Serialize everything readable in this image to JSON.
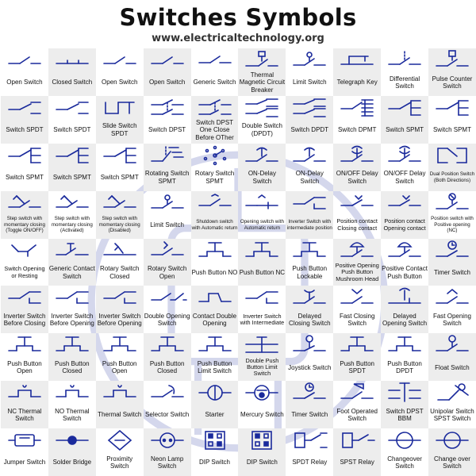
{
  "header": {
    "title": "Switches Symbols",
    "subtitle": "www.electricaltechnology.org"
  },
  "colors": {
    "symbol": "#1a2a9c",
    "alt_cell": "#ededed",
    "text": "#111111"
  },
  "grid": {
    "rows": 9,
    "cols": 10,
    "cells": [
      {
        "label": "Open Switch",
        "icon": "open-switch"
      },
      {
        "label": "Closed Switch",
        "icon": "closed-switch"
      },
      {
        "label": "Open Switch",
        "icon": "open-switch"
      },
      {
        "label": "Open Switch",
        "icon": "open-switch"
      },
      {
        "label": "Generic Switch",
        "icon": "generic-switch"
      },
      {
        "label": "Thermal Magnetic Circuit Breaker",
        "icon": "thermal-magnetic-breaker"
      },
      {
        "label": "Limit Switch",
        "icon": "limit-switch"
      },
      {
        "label": "Telegraph Key",
        "icon": "telegraph-key"
      },
      {
        "label": "Differential Switch",
        "icon": "differential-switch"
      },
      {
        "label": "Pulse Counter Switch",
        "icon": "pulse-counter-switch"
      },
      {
        "label": "Switch SPDT",
        "icon": "spdt"
      },
      {
        "label": "Switch SPDT",
        "icon": "spdt"
      },
      {
        "label": "Slide Switch SPDT",
        "icon": "slide-spdt"
      },
      {
        "label": "Switch DPST",
        "icon": "dpst"
      },
      {
        "label": "Switch DPST One Close Before OTher",
        "icon": "dpst-one-close"
      },
      {
        "label": "Double Switch (DPDT)",
        "icon": "dpdt"
      },
      {
        "label": "Switch DPDT",
        "icon": "dpdt"
      },
      {
        "label": "Switch DPMT",
        "icon": "dpmt"
      },
      {
        "label": "Switch SPMT",
        "icon": "spmt"
      },
      {
        "label": "Switch SPMT",
        "icon": "spmt"
      },
      {
        "label": "Switch SPMT",
        "icon": "spmt"
      },
      {
        "label": "Switch SPMT",
        "icon": "spmt"
      },
      {
        "label": "Switch SPMT",
        "icon": "spmt"
      },
      {
        "label": "Rotating Switch SPMT",
        "icon": "rotating-switch"
      },
      {
        "label": "Rotary Switch SPMT",
        "icon": "rotary-switch"
      },
      {
        "label": "ON-Delay Switch",
        "icon": "on-delay"
      },
      {
        "label": "ON-Delay Switch",
        "icon": "on-delay"
      },
      {
        "label": "ON/OFF Delay Switch",
        "icon": "on-off-delay"
      },
      {
        "label": "ON/OFF Delay Switch",
        "icon": "on-off-delay"
      },
      {
        "label": "Dual Position Switch (Both Directions)",
        "icon": "dual-position",
        "size": "tiny"
      },
      {
        "label": "Step switch with momentary closing (Toggle ON/OFF)",
        "icon": "step-switch",
        "size": "tiny"
      },
      {
        "label": "Step switch with momentary closing (Activated)",
        "icon": "step-switch",
        "size": "tiny"
      },
      {
        "label": "Step switch with momentary closing (Disabled)",
        "icon": "step-switch",
        "size": "tiny"
      },
      {
        "label": "Limit Switch",
        "icon": "limit-switch"
      },
      {
        "label": "Shutdown switch with Automatic return",
        "icon": "shutdown-switch",
        "size": "tiny"
      },
      {
        "label": "Opening switch with Automatic return",
        "icon": "opening-switch",
        "size": "tiny"
      },
      {
        "label": "Inverter Switch with intermediate position",
        "icon": "inverter-switch",
        "size": "tiny"
      },
      {
        "label": "Position contact Closing contact",
        "icon": "position-contact",
        "size": "small"
      },
      {
        "label": "Position contact Opening contact",
        "icon": "position-contact",
        "size": "small"
      },
      {
        "label": "Position switch with Positive opening (NC)",
        "icon": "position-switch",
        "size": "tiny"
      },
      {
        "label": "Switch Opening or Resting",
        "icon": "switch-opening",
        "size": "small"
      },
      {
        "label": "Generic Contact Switch",
        "icon": "generic-contact"
      },
      {
        "label": "Rotary Switch Closed",
        "icon": "rotary-closed"
      },
      {
        "label": "Rotary Switch Open",
        "icon": "rotary-open"
      },
      {
        "label": "Push Button NO",
        "icon": "push-button"
      },
      {
        "label": "Push Button NC",
        "icon": "push-button"
      },
      {
        "label": "Push Button Lockable",
        "icon": "push-button"
      },
      {
        "label": "Positive Opening Push Button Mushroom Head",
        "icon": "mushroom-head",
        "size": "small"
      },
      {
        "label": "Positive Contact Push Button",
        "icon": "mushroom-head"
      },
      {
        "label": "Timer Switch",
        "icon": "timer-switch"
      },
      {
        "label": "Inverter Switch Before Closing",
        "icon": "inverter-switch"
      },
      {
        "label": "Inverter Switch Before Opening",
        "icon": "inverter-switch"
      },
      {
        "label": "Inverter Switch Before Opening",
        "icon": "inverter-switch"
      },
      {
        "label": "Double Opening Switch",
        "icon": "double-opening"
      },
      {
        "label": "Contact Double Opening",
        "icon": "contact-double-opening"
      },
      {
        "label": "Inverter Switch with Intermediate",
        "icon": "inverter-switch",
        "size": "small"
      },
      {
        "label": "Delayed Closing Switch",
        "icon": "delayed-closing"
      },
      {
        "label": "Fast Closing Switch",
        "icon": "fast-closing"
      },
      {
        "label": "Delayed Opening Switch",
        "icon": "delayed-opening"
      },
      {
        "label": "Fast Opening Switch",
        "icon": "fast-opening"
      },
      {
        "label": "Push Button Open",
        "icon": "push-button"
      },
      {
        "label": "Push Button Closed",
        "icon": "push-button"
      },
      {
        "label": "Push Button Open",
        "icon": "push-button"
      },
      {
        "label": "Push Button Closed",
        "icon": "push-button"
      },
      {
        "label": "Push Button Limit Switch",
        "icon": "push-button"
      },
      {
        "label": "Double Push Button Limit Switch",
        "icon": "double-push-button",
        "size": "small"
      },
      {
        "label": "Joystick Switch",
        "icon": "joystick"
      },
      {
        "label": "Push Button SPDT",
        "icon": "push-button"
      },
      {
        "label": "Push Button DPDT",
        "icon": "push-button"
      },
      {
        "label": "Float Switch",
        "icon": "float-switch"
      },
      {
        "label": "NC Thermal Switch",
        "icon": "thermal-switch"
      },
      {
        "label": "NO Thermal Switch",
        "icon": "thermal-switch"
      },
      {
        "label": "Thermal Switch",
        "icon": "thermal-switch"
      },
      {
        "label": "Selector Switch",
        "icon": "selector-switch"
      },
      {
        "label": "Starter",
        "icon": "starter"
      },
      {
        "label": "Mercury Switch",
        "icon": "mercury-switch"
      },
      {
        "label": "Timer Switch",
        "icon": "timer-switch"
      },
      {
        "label": "Foot Operated Switch",
        "icon": "foot-operated"
      },
      {
        "label": "Switch DPST BBM",
        "icon": "dpst-bbm"
      },
      {
        "label": "Unipolar Switch SPST Switch",
        "icon": "unipolar-switch"
      },
      {
        "label": "Jumper Switch",
        "icon": "jumper-switch"
      },
      {
        "label": "Solder Bridge",
        "icon": "solder-bridge"
      },
      {
        "label": "Proximity Switch",
        "icon": "proximity-switch"
      },
      {
        "label": "Neon Lamp Switch",
        "icon": "neon-lamp"
      },
      {
        "label": "DIP Switch",
        "icon": "dip-switch"
      },
      {
        "label": "DIP Switch",
        "icon": "dip-switch"
      },
      {
        "label": "SPDT Relay",
        "icon": "spdt-relay"
      },
      {
        "label": "SPST Relay",
        "icon": "spst-relay"
      },
      {
        "label": "Changeover Switch",
        "icon": "changeover"
      },
      {
        "label": "Change over Switch",
        "icon": "changeover"
      }
    ]
  }
}
